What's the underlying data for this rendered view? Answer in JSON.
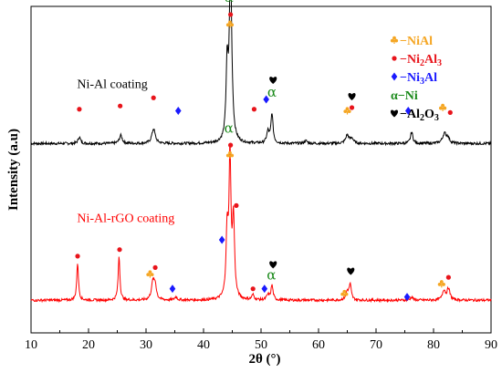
{
  "chart_data": {
    "type": "line",
    "xlabel": "2θ (°)",
    "ylabel": "Intensity (a.u)",
    "xlim": [
      10,
      90
    ],
    "x_ticks": [
      "10",
      "20",
      "30",
      "40",
      "50",
      "60",
      "70",
      "80",
      "90"
    ],
    "grid": false,
    "legend": {
      "placement": "top-right",
      "entries": [
        {
          "symbol": "club",
          "color": "#f5a623",
          "label_prefix": "−",
          "label": "NiAl"
        },
        {
          "symbol": "circle",
          "color": "#e8141b",
          "label_prefix": "−",
          "label": "Ni2Al3",
          "label_main": "Ni",
          "sub1": "2",
          "mid": "Al",
          "sub2": "3"
        },
        {
          "symbol": "diamond",
          "color": "#1a1aff",
          "label_prefix": "−",
          "label": "Ni3Al",
          "label_main": "Ni",
          "sub1": "3",
          "mid": "Al",
          "sub2": ""
        },
        {
          "symbol": "alpha",
          "color": "#1a8a1a",
          "label_prefix": "α−",
          "label": "Ni"
        },
        {
          "symbol": "heart",
          "color": "#000000",
          "label_prefix": "−",
          "label": "Al2O3",
          "label_main": "Al",
          "sub1": "2",
          "mid": "O",
          "sub2": "3"
        }
      ]
    },
    "series": [
      {
        "name": "Ni-Al coating",
        "color": "#000000",
        "baseline": 0.58,
        "peaks": [
          {
            "x": 18.4,
            "h": 0.02,
            "w": 0.25
          },
          {
            "x": 25.6,
            "h": 0.025,
            "w": 0.3
          },
          {
            "x": 31.3,
            "h": 0.045,
            "w": 0.35
          },
          {
            "x": 44.1,
            "h": 0.22,
            "w": 0.22
          },
          {
            "x": 44.7,
            "h": 0.55,
            "w": 0.25
          },
          {
            "x": 51.2,
            "h": 0.035,
            "w": 0.25
          },
          {
            "x": 51.9,
            "h": 0.09,
            "w": 0.22
          },
          {
            "x": 57.8,
            "h": 0.008,
            "w": 0.3
          },
          {
            "x": 65.0,
            "h": 0.025,
            "w": 0.35
          },
          {
            "x": 65.8,
            "h": 0.015,
            "w": 0.3
          },
          {
            "x": 76.2,
            "h": 0.035,
            "w": 0.25
          },
          {
            "x": 81.9,
            "h": 0.03,
            "w": 0.4
          },
          {
            "x": 82.5,
            "h": 0.015,
            "w": 0.3
          }
        ],
        "markers": [
          {
            "x": 18.4,
            "y": 0.685,
            "symbol": "circle"
          },
          {
            "x": 25.5,
            "y": 0.695,
            "symbol": "circle"
          },
          {
            "x": 31.3,
            "y": 0.72,
            "symbol": "circle"
          },
          {
            "x": 35.6,
            "y": 0.68,
            "symbol": "diamond"
          },
          {
            "x": 48.8,
            "y": 0.685,
            "symbol": "circle"
          },
          {
            "x": 50.9,
            "y": 0.715,
            "symbol": "diamond"
          },
          {
            "x": 65.0,
            "y": 0.68,
            "symbol": "club"
          },
          {
            "x": 65.8,
            "y": 0.69,
            "symbol": "circle"
          },
          {
            "x": 75.6,
            "y": 0.68,
            "symbol": "diamond"
          },
          {
            "x": 81.6,
            "y": 0.69,
            "symbol": "club"
          },
          {
            "x": 82.9,
            "y": 0.675,
            "symbol": "circle"
          },
          {
            "x": 44.7,
            "y": 0.975,
            "symbol": "circle"
          },
          {
            "x": 44.6,
            "y": 0.945,
            "symbol": "club"
          },
          {
            "x": 44.4,
            "y": 1.025,
            "symbol": "alpha"
          },
          {
            "x": 51.9,
            "y": 0.735,
            "symbol": "alpha"
          },
          {
            "x": 52.1,
            "y": 0.775,
            "symbol": "heart"
          },
          {
            "x": 65.8,
            "y": 0.725,
            "symbol": "heart"
          }
        ]
      },
      {
        "name": "Ni-Al-rGO coating",
        "color": "#ff0000",
        "baseline": 0.1,
        "peaks": [
          {
            "x": 18.1,
            "h": 0.115,
            "w": 0.18
          },
          {
            "x": 25.3,
            "h": 0.135,
            "w": 0.18
          },
          {
            "x": 31.2,
            "h": 0.055,
            "w": 0.3
          },
          {
            "x": 31.6,
            "h": 0.04,
            "w": 0.25
          },
          {
            "x": 35.2,
            "h": 0.01,
            "w": 0.25
          },
          {
            "x": 44.1,
            "h": 0.2,
            "w": 0.22
          },
          {
            "x": 44.6,
            "h": 0.43,
            "w": 0.2
          },
          {
            "x": 45.2,
            "h": 0.24,
            "w": 0.22
          },
          {
            "x": 48.6,
            "h": 0.015,
            "w": 0.25
          },
          {
            "x": 51.2,
            "h": 0.015,
            "w": 0.25
          },
          {
            "x": 51.9,
            "h": 0.045,
            "w": 0.22
          },
          {
            "x": 65.0,
            "h": 0.025,
            "w": 0.3
          },
          {
            "x": 65.5,
            "h": 0.045,
            "w": 0.22
          },
          {
            "x": 76.2,
            "h": 0.01,
            "w": 0.25
          },
          {
            "x": 81.8,
            "h": 0.03,
            "w": 0.3
          },
          {
            "x": 82.6,
            "h": 0.035,
            "w": 0.3
          }
        ],
        "markers": [
          {
            "x": 18.1,
            "y": 0.235,
            "symbol": "circle"
          },
          {
            "x": 25.4,
            "y": 0.255,
            "symbol": "circle"
          },
          {
            "x": 30.7,
            "y": 0.18,
            "symbol": "club"
          },
          {
            "x": 31.6,
            "y": 0.2,
            "symbol": "circle"
          },
          {
            "x": 34.6,
            "y": 0.135,
            "symbol": "diamond"
          },
          {
            "x": 43.2,
            "y": 0.285,
            "symbol": "diamond"
          },
          {
            "x": 45.7,
            "y": 0.39,
            "symbol": "circle"
          },
          {
            "x": 44.7,
            "y": 0.575,
            "symbol": "circle"
          },
          {
            "x": 44.6,
            "y": 0.545,
            "symbol": "club"
          },
          {
            "x": 44.4,
            "y": 0.625,
            "symbol": "alpha"
          },
          {
            "x": 48.6,
            "y": 0.135,
            "symbol": "circle"
          },
          {
            "x": 50.6,
            "y": 0.135,
            "symbol": "diamond"
          },
          {
            "x": 51.8,
            "y": 0.175,
            "symbol": "alpha"
          },
          {
            "x": 52.1,
            "y": 0.21,
            "symbol": "heart"
          },
          {
            "x": 64.5,
            "y": 0.12,
            "symbol": "club"
          },
          {
            "x": 65.6,
            "y": 0.19,
            "symbol": "heart"
          },
          {
            "x": 75.4,
            "y": 0.11,
            "symbol": "diamond"
          },
          {
            "x": 81.4,
            "y": 0.15,
            "symbol": "club"
          },
          {
            "x": 82.6,
            "y": 0.17,
            "symbol": "circle"
          }
        ]
      }
    ],
    "annotations": [
      {
        "text": "Ni-Al coating",
        "x": 18.0,
        "y": 0.75,
        "color": "#000000"
      },
      {
        "text": "Ni-Al-rGO coating",
        "x": 18.0,
        "y": 0.34,
        "color": "#ff0000"
      }
    ]
  }
}
